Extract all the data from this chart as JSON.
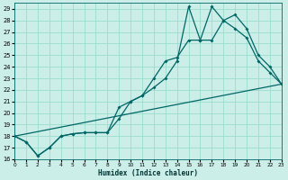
{
  "xlabel": "Humidex (Indice chaleur)",
  "bg_color": "#cceee8",
  "grid_color": "#99ddcc",
  "line_color": "#006666",
  "line1_straight": {
    "x": [
      0,
      23
    ],
    "y": [
      18.0,
      22.5
    ]
  },
  "line2": {
    "x": [
      0,
      1,
      2,
      3,
      4,
      5,
      6,
      7,
      8,
      9,
      10,
      11,
      12,
      13,
      14,
      15,
      16,
      17,
      18,
      19,
      20,
      21,
      22,
      23
    ],
    "y": [
      18.0,
      17.5,
      16.3,
      17.0,
      18.0,
      18.2,
      18.3,
      18.3,
      18.3,
      19.5,
      21.0,
      21.5,
      22.2,
      23.0,
      24.5,
      29.2,
      26.3,
      26.3,
      28.0,
      27.3,
      26.5,
      24.5,
      23.5,
      22.5
    ]
  },
  "line3": {
    "x": [
      0,
      1,
      2,
      3,
      4,
      5,
      6,
      7,
      8,
      9,
      10,
      11,
      12,
      13,
      14,
      15,
      16,
      17,
      18,
      19,
      20,
      21,
      22,
      23
    ],
    "y": [
      18.0,
      17.5,
      16.3,
      17.0,
      18.0,
      18.2,
      18.3,
      18.3,
      18.3,
      20.5,
      21.0,
      21.5,
      23.0,
      24.5,
      24.8,
      26.3,
      26.3,
      29.2,
      28.0,
      28.5,
      27.3,
      25.0,
      24.0,
      22.5
    ]
  },
  "xlim": [
    0,
    23
  ],
  "ylim": [
    16,
    29.5
  ],
  "yticks": [
    16,
    17,
    18,
    19,
    20,
    21,
    22,
    23,
    24,
    25,
    26,
    27,
    28,
    29
  ],
  "xticks": [
    0,
    1,
    2,
    3,
    4,
    5,
    6,
    7,
    8,
    9,
    10,
    11,
    12,
    13,
    14,
    15,
    16,
    17,
    18,
    19,
    20,
    21,
    22,
    23
  ],
  "marker_size": 2.0,
  "linewidth": 0.9
}
